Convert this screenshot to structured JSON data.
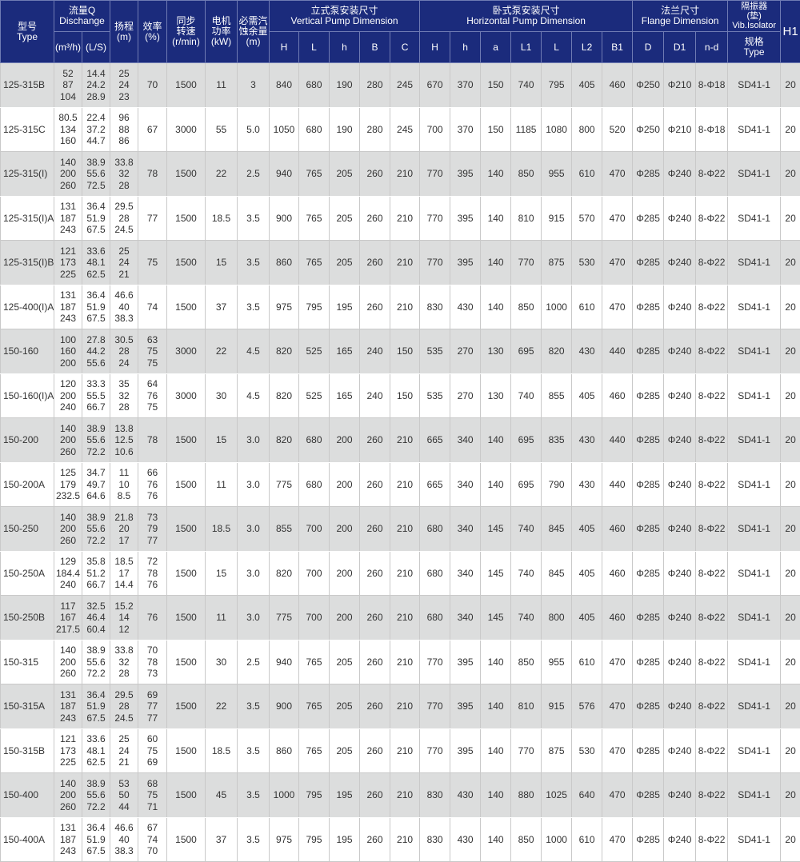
{
  "header": {
    "type_cn": "型号",
    "type_en": "Type",
    "flow_cn": "流量Q",
    "flow_en": "Dischange",
    "flow_m3h": "(m³/h)",
    "flow_ls": "(L/S)",
    "head_cn": "扬程",
    "head_unit": "(m)",
    "eff_cn": "效率",
    "eff_unit": "(%)",
    "speed_cn1": "同步",
    "speed_cn2": "转速",
    "speed_unit": "(r/min)",
    "power_cn1": "电机",
    "power_cn2": "功率",
    "power_unit": "(kW)",
    "npsh_cn1": "必需汽",
    "npsh_cn2": "蚀余量",
    "npsh_unit": "(m)",
    "vertical_cn": "立式泵安装尺寸",
    "vertical_en": "Vertical  Pump  Dimension",
    "vertical_cols": [
      "H",
      "L",
      "h",
      "B",
      "C"
    ],
    "horizontal_cn": "卧式泵安装尺寸",
    "horizontal_en": "Horizontal Pump Dimension",
    "horizontal_cols": [
      "H",
      "h",
      "a",
      "L1",
      "L",
      "L2",
      "B1"
    ],
    "flange_cn": "法兰尺寸",
    "flange_en": "Flange Dimension",
    "flange_cols": [
      "D",
      "D1",
      "n-d"
    ],
    "isolator_cn1": "隔振器",
    "isolator_cn2": "(垫)",
    "isolator_en": "Vib.Isolator",
    "isolator_spec_cn": "规格",
    "isolator_spec_en": "Type",
    "h1": "H1"
  },
  "colors": {
    "header_bg": "#1b2b7c",
    "row_alt": "#dcdddd"
  },
  "rows": [
    [
      "125-315B",
      [
        "52",
        "87",
        "104"
      ],
      [
        "14.4",
        "24.2",
        "28.9"
      ],
      [
        "25",
        "24",
        "23"
      ],
      "70",
      "1500",
      "11",
      "3",
      "840",
      "680",
      "190",
      "280",
      "245",
      "670",
      "370",
      "150",
      "740",
      "795",
      "405",
      "460",
      "Φ250",
      "Φ210",
      "8-Φ18",
      "SD41-1",
      "20"
    ],
    [
      "125-315C",
      [
        "80.5",
        "134",
        "160"
      ],
      [
        "22.4",
        "37.2",
        "44.7"
      ],
      [
        "96",
        "88",
        "86"
      ],
      "67",
      "3000",
      "55",
      "5.0",
      "1050",
      "680",
      "190",
      "280",
      "245",
      "700",
      "370",
      "150",
      "1185",
      "1080",
      "800",
      "520",
      "Φ250",
      "Φ210",
      "8-Φ18",
      "SD41-1",
      "20"
    ],
    [
      "125-315(I)",
      [
        "140",
        "200",
        "260"
      ],
      [
        "38.9",
        "55.6",
        "72.5"
      ],
      [
        "33.8",
        "32",
        "28"
      ],
      "78",
      "1500",
      "22",
      "2.5",
      "940",
      "765",
      "205",
      "260",
      "210",
      "770",
      "395",
      "140",
      "850",
      "955",
      "610",
      "470",
      "Φ285",
      "Φ240",
      "8-Φ22",
      "SD41-1",
      "20"
    ],
    [
      "125-315(I)A",
      [
        "131",
        "187",
        "243"
      ],
      [
        "36.4",
        "51.9",
        "67.5"
      ],
      [
        "29.5",
        "28",
        "24.5"
      ],
      "77",
      "1500",
      "18.5",
      "3.5",
      "900",
      "765",
      "205",
      "260",
      "210",
      "770",
      "395",
      "140",
      "810",
      "915",
      "570",
      "470",
      "Φ285",
      "Φ240",
      "8-Φ22",
      "SD41-1",
      "20"
    ],
    [
      "125-315(I)B",
      [
        "121",
        "173",
        "225"
      ],
      [
        "33.6",
        "48.1",
        "62.5"
      ],
      [
        "25",
        "24",
        "21"
      ],
      "75",
      "1500",
      "15",
      "3.5",
      "860",
      "765",
      "205",
      "260",
      "210",
      "770",
      "395",
      "140",
      "770",
      "875",
      "530",
      "470",
      "Φ285",
      "Φ240",
      "8-Φ22",
      "SD41-1",
      "20"
    ],
    [
      "125-400(I)A",
      [
        "131",
        "187",
        "243"
      ],
      [
        "36.4",
        "51.9",
        "67.5"
      ],
      [
        "46.6",
        "40",
        "38.3"
      ],
      "74",
      "1500",
      "37",
      "3.5",
      "975",
      "795",
      "195",
      "260",
      "210",
      "830",
      "430",
      "140",
      "850",
      "1000",
      "610",
      "470",
      "Φ285",
      "Φ240",
      "8-Φ22",
      "SD41-1",
      "20"
    ],
    [
      "150-160",
      [
        "100",
        "160",
        "200"
      ],
      [
        "27.8",
        "44.2",
        "55.6"
      ],
      [
        "30.5",
        "28",
        "24"
      ],
      [
        "63",
        "75",
        "75"
      ],
      "3000",
      "22",
      "4.5",
      "820",
      "525",
      "165",
      "240",
      "150",
      "535",
      "270",
      "130",
      "695",
      "820",
      "430",
      "440",
      "Φ285",
      "Φ240",
      "8-Φ22",
      "SD41-1",
      "20"
    ],
    [
      "150-160(I)A",
      [
        "120",
        "200",
        "240"
      ],
      [
        "33.3",
        "55.5",
        "66.7"
      ],
      [
        "35",
        "32",
        "28"
      ],
      [
        "64",
        "76",
        "75"
      ],
      "3000",
      "30",
      "4.5",
      "820",
      "525",
      "165",
      "240",
      "150",
      "535",
      "270",
      "130",
      "740",
      "855",
      "405",
      "460",
      "Φ285",
      "Φ240",
      "8-Φ22",
      "SD41-1",
      "20"
    ],
    [
      "150-200",
      [
        "140",
        "200",
        "260"
      ],
      [
        "38.9",
        "55.6",
        "72.2"
      ],
      [
        "13.8",
        "12.5",
        "10.6"
      ],
      "78",
      "1500",
      "15",
      "3.0",
      "820",
      "680",
      "200",
      "260",
      "210",
      "665",
      "340",
      "140",
      "695",
      "835",
      "430",
      "440",
      "Φ285",
      "Φ240",
      "8-Φ22",
      "SD41-1",
      "20"
    ],
    [
      "150-200A",
      [
        "125",
        "179",
        "232.5"
      ],
      [
        "34.7",
        "49.7",
        "64.6"
      ],
      [
        "11",
        "10",
        "8.5"
      ],
      [
        "66",
        "76",
        "76"
      ],
      "1500",
      "11",
      "3.0",
      "775",
      "680",
      "200",
      "260",
      "210",
      "665",
      "340",
      "140",
      "695",
      "790",
      "430",
      "440",
      "Φ285",
      "Φ240",
      "8-Φ22",
      "SD41-1",
      "20"
    ],
    [
      "150-250",
      [
        "140",
        "200",
        "260"
      ],
      [
        "38.9",
        "55.6",
        "72.2"
      ],
      [
        "21.8",
        "20",
        "17"
      ],
      [
        "73",
        "79",
        "77"
      ],
      "1500",
      "18.5",
      "3.0",
      "855",
      "700",
      "200",
      "260",
      "210",
      "680",
      "340",
      "145",
      "740",
      "845",
      "405",
      "460",
      "Φ285",
      "Φ240",
      "8-Φ22",
      "SD41-1",
      "20"
    ],
    [
      "150-250A",
      [
        "129",
        "184.4",
        "240"
      ],
      [
        "35.8",
        "51.2",
        "66.7"
      ],
      [
        "18.5",
        "17",
        "14.4"
      ],
      [
        "72",
        "78",
        "76"
      ],
      "1500",
      "15",
      "3.0",
      "820",
      "700",
      "200",
      "260",
      "210",
      "680",
      "340",
      "145",
      "740",
      "845",
      "405",
      "460",
      "Φ285",
      "Φ240",
      "8-Φ22",
      "SD41-1",
      "20"
    ],
    [
      "150-250B",
      [
        "117",
        "167",
        "217.5"
      ],
      [
        "32.5",
        "46.4",
        "60.4"
      ],
      [
        "15.2",
        "14",
        "12"
      ],
      "76",
      "1500",
      "11",
      "3.0",
      "775",
      "700",
      "200",
      "260",
      "210",
      "680",
      "340",
      "145",
      "740",
      "800",
      "405",
      "460",
      "Φ285",
      "Φ240",
      "8-Φ22",
      "SD41-1",
      "20"
    ],
    [
      "150-315",
      [
        "140",
        "200",
        "260"
      ],
      [
        "38.9",
        "55.6",
        "72.2"
      ],
      [
        "33.8",
        "32",
        "28"
      ],
      [
        "70",
        "78",
        "73"
      ],
      "1500",
      "30",
      "2.5",
      "940",
      "765",
      "205",
      "260",
      "210",
      "770",
      "395",
      "140",
      "850",
      "955",
      "610",
      "470",
      "Φ285",
      "Φ240",
      "8-Φ22",
      "SD41-1",
      "20"
    ],
    [
      "150-315A",
      [
        "131",
        "187",
        "243"
      ],
      [
        "36.4",
        "51.9",
        "67.5"
      ],
      [
        "29.5",
        "28",
        "24.5"
      ],
      [
        "69",
        "77",
        "77"
      ],
      "1500",
      "22",
      "3.5",
      "900",
      "765",
      "205",
      "260",
      "210",
      "770",
      "395",
      "140",
      "810",
      "915",
      "576",
      "470",
      "Φ285",
      "Φ240",
      "8-Φ22",
      "SD41-1",
      "20"
    ],
    [
      "150-315B",
      [
        "121",
        "173",
        "225"
      ],
      [
        "33.6",
        "48.1",
        "62.5"
      ],
      [
        "25",
        "24",
        "21"
      ],
      [
        "60",
        "75",
        "69"
      ],
      "1500",
      "18.5",
      "3.5",
      "860",
      "765",
      "205",
      "260",
      "210",
      "770",
      "395",
      "140",
      "770",
      "875",
      "530",
      "470",
      "Φ285",
      "Φ240",
      "8-Φ22",
      "SD41-1",
      "20"
    ],
    [
      "150-400",
      [
        "140",
        "200",
        "260"
      ],
      [
        "38.9",
        "55.6",
        "72.2"
      ],
      [
        "53",
        "50",
        "44"
      ],
      [
        "68",
        "75",
        "71"
      ],
      "1500",
      "45",
      "3.5",
      "1000",
      "795",
      "195",
      "260",
      "210",
      "830",
      "430",
      "140",
      "880",
      "1025",
      "640",
      "470",
      "Φ285",
      "Φ240",
      "8-Φ22",
      "SD41-1",
      "20"
    ],
    [
      "150-400A",
      [
        "131",
        "187",
        "243"
      ],
      [
        "36.4",
        "51.9",
        "67.5"
      ],
      [
        "46.6",
        "40",
        "38.3"
      ],
      [
        "67",
        "74",
        "70"
      ],
      "1500",
      "37",
      "3.5",
      "975",
      "795",
      "195",
      "260",
      "210",
      "830",
      "430",
      "140",
      "850",
      "1000",
      "610",
      "470",
      "Φ285",
      "Φ240",
      "8-Φ22",
      "SD41-1",
      "20"
    ]
  ]
}
